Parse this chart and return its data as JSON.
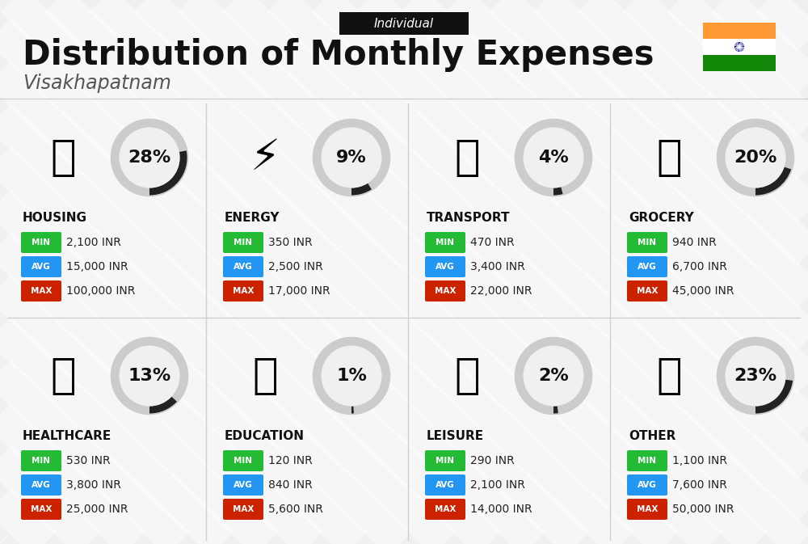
{
  "title": "Distribution of Monthly Expenses",
  "subtitle": "Individual",
  "city": "Visakhapatnam",
  "bg_color": "#f0f0f0",
  "categories": [
    {
      "name": "HOUSING",
      "pct": 28,
      "min": "2,100 INR",
      "avg": "15,000 INR",
      "max": "100,000 INR",
      "row": 0,
      "col": 0
    },
    {
      "name": "ENERGY",
      "pct": 9,
      "min": "350 INR",
      "avg": "2,500 INR",
      "max": "17,000 INR",
      "row": 0,
      "col": 1
    },
    {
      "name": "TRANSPORT",
      "pct": 4,
      "min": "470 INR",
      "avg": "3,400 INR",
      "max": "22,000 INR",
      "row": 0,
      "col": 2
    },
    {
      "name": "GROCERY",
      "pct": 20,
      "min": "940 INR",
      "avg": "6,700 INR",
      "max": "45,000 INR",
      "row": 0,
      "col": 3
    },
    {
      "name": "HEALTHCARE",
      "pct": 13,
      "min": "530 INR",
      "avg": "3,800 INR",
      "max": "25,000 INR",
      "row": 1,
      "col": 0
    },
    {
      "name": "EDUCATION",
      "pct": 1,
      "min": "120 INR",
      "avg": "840 INR",
      "max": "5,600 INR",
      "row": 1,
      "col": 1
    },
    {
      "name": "LEISURE",
      "pct": 2,
      "min": "290 INR",
      "avg": "2,100 INR",
      "max": "14,000 INR",
      "row": 1,
      "col": 2
    },
    {
      "name": "OTHER",
      "pct": 23,
      "min": "1,100 INR",
      "avg": "7,600 INR",
      "max": "50,000 INR",
      "row": 1,
      "col": 3
    }
  ],
  "min_color": "#22bb33",
  "avg_color": "#2196F3",
  "max_color": "#cc2200",
  "india_flag_orange": "#FF9933",
  "india_flag_green": "#138808",
  "india_flag_white": "#FFFFFF",
  "india_flag_blue": "#000080",
  "stripe_color": "#e8e8e8",
  "separator_color": "#d0d0d0",
  "arc_bg_color": "#cccccc",
  "arc_fg_color": "#222222",
  "header_bg": "#f0f0f0"
}
